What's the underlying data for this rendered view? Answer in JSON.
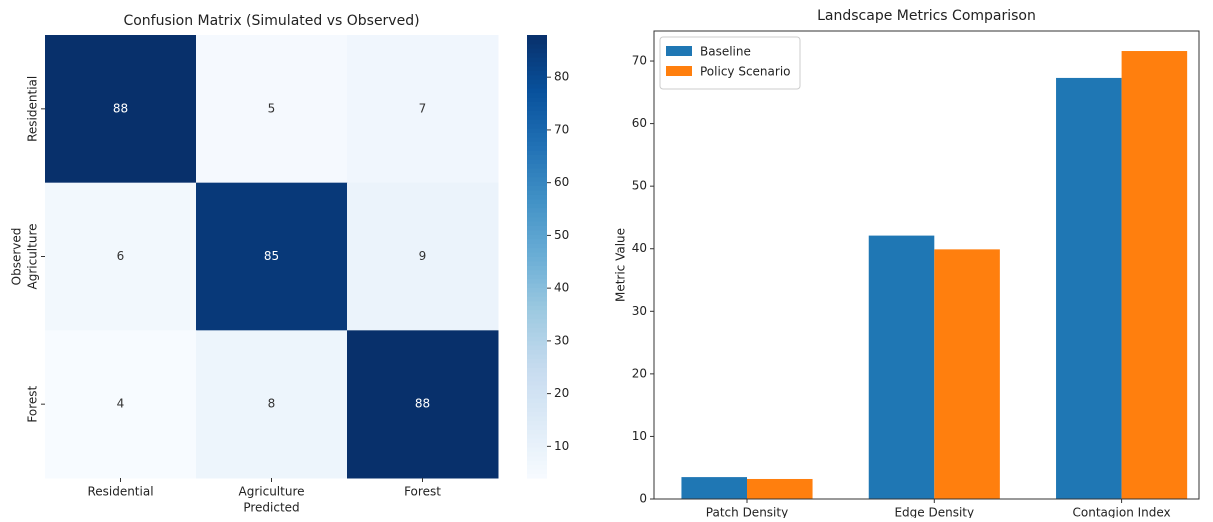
{
  "chart_data": [
    {
      "type": "heatmap",
      "title": "Confusion Matrix (Simulated vs Observed)",
      "x_label": "Predicted",
      "y_label": "Observed",
      "x_categories": [
        "Residential",
        "Agriculture",
        "Forest"
      ],
      "y_categories": [
        "Residential",
        "Agriculture",
        "Forest"
      ],
      "matrix": [
        [
          88,
          5,
          7
        ],
        [
          6,
          85,
          9
        ],
        [
          4,
          8,
          88
        ]
      ],
      "colormap": "Blues",
      "color_range": [
        4,
        88
      ],
      "colorbar_ticks": [
        10,
        20,
        30,
        40,
        50,
        60,
        70,
        80
      ]
    },
    {
      "type": "bar",
      "title": "Landscape Metrics Comparison",
      "y_label": "Metric Value",
      "categories": [
        "Patch Density",
        "Edge Density",
        "Contagion Index"
      ],
      "series": [
        {
          "name": "Baseline",
          "color": "#1f77b4",
          "values": [
            3.5,
            42.1,
            67.3
          ]
        },
        {
          "name": "Policy Scenario",
          "color": "#ff7f0e",
          "values": [
            3.2,
            39.9,
            71.6
          ]
        }
      ],
      "ylim": [
        0,
        74.8
      ],
      "yticks": [
        0,
        10,
        20,
        30,
        40,
        50,
        60,
        70
      ],
      "legend": "upper left"
    }
  ]
}
